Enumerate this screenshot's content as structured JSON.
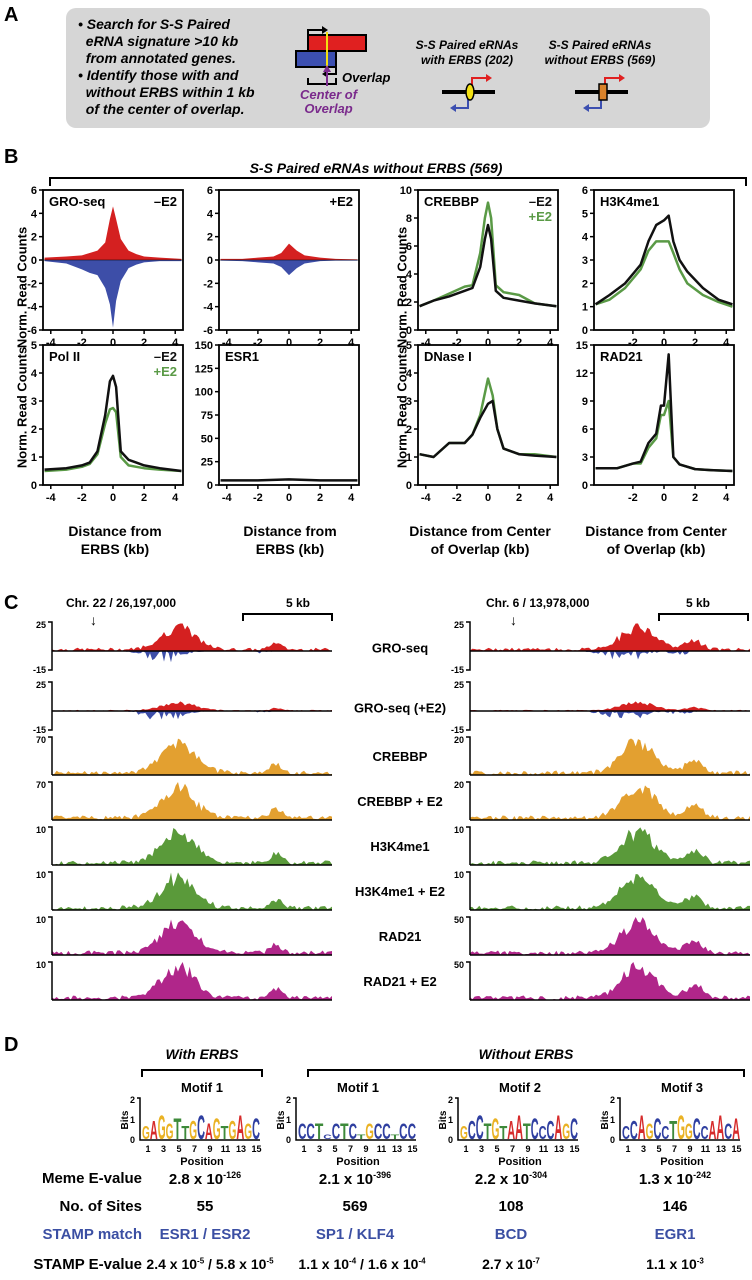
{
  "panelA": {
    "letter": "A",
    "bullets": [
      [
        "Search for S-S Paired",
        "eRNA signature >10 kb",
        "from annotated genes."
      ],
      [
        "Identify those with and",
        "without ERBS within 1 kb",
        "of the center of overlap."
      ]
    ],
    "overlap_label": "Overlap",
    "center_label": [
      "Center of",
      "Overlap"
    ],
    "with_title": [
      "S-S Paired eRNAs",
      "with ERBS (202)"
    ],
    "without_title": [
      "S-S Paired eRNAs",
      "without ERBS (569)"
    ],
    "colors": {
      "sense": "#e02020",
      "antisense": "#3c4fb0",
      "center": "#7a2a8c",
      "erbs": "#f2e011",
      "no_erbs": "#d9822b",
      "box": "#d6d6d6"
    }
  },
  "panelB": {
    "letter": "B",
    "bracket_title": "S-S Paired eRNAs without ERBS (569)",
    "ylabel": "Norm. Read Counts",
    "xlabel_erbs": [
      "Distance from",
      "ERBS (kb)"
    ],
    "xlabel_center": [
      "Distance from Center",
      "of Overlap (kb)"
    ],
    "legend": {
      "minus": "–E2",
      "plus": "+E2"
    },
    "colors": {
      "minus": "#111111",
      "plus": "#5a9a46",
      "sense": "#d42020",
      "antisense": "#3d4ea8"
    }
  },
  "chart_data": [
    {
      "id": "gro-minus",
      "type": "area",
      "title": "GRO-seq",
      "tag": "–E2",
      "xlim": [
        -4.5,
        4.5
      ],
      "ylim": [
        -6,
        6
      ],
      "xticks": [
        -4,
        -2,
        0,
        2,
        4
      ],
      "yticks": [
        -6,
        -4,
        -2,
        0,
        2,
        4,
        6
      ],
      "series": [
        {
          "name": "sense",
          "x": [
            -4.4,
            -3,
            -2,
            -1.5,
            -1,
            -0.5,
            -0.2,
            0,
            0.2,
            0.5,
            1,
            1.5,
            2,
            3,
            4.4
          ],
          "values": [
            0.2,
            0.3,
            0.4,
            0.6,
            0.8,
            1.5,
            3.5,
            4.6,
            3.5,
            1.8,
            0.8,
            0.5,
            0.3,
            0.2,
            0.1
          ]
        },
        {
          "name": "antisense",
          "x": [
            -4.4,
            -3,
            -2,
            -1.5,
            -1,
            -0.5,
            -0.2,
            0,
            0.2,
            0.5,
            1,
            1.5,
            2,
            3,
            4.4
          ],
          "values": [
            -0.1,
            -0.3,
            -0.8,
            -1.1,
            -1.3,
            -2.4,
            -3.8,
            -5.8,
            -3.5,
            -1.8,
            -0.7,
            -0.4,
            -0.2,
            -0.1,
            -0.1
          ]
        }
      ]
    },
    {
      "id": "gro-plus",
      "type": "area",
      "title": "",
      "tag": "+E2",
      "xlim": [
        -4.5,
        4.5
      ],
      "ylim": [
        -6,
        6
      ],
      "xticks": [
        -4,
        -2,
        0,
        2,
        4
      ],
      "yticks": [
        -6,
        -4,
        -2,
        0,
        2,
        4,
        6
      ],
      "series": [
        {
          "name": "sense",
          "x": [
            -4.4,
            -3,
            -2,
            -1,
            -0.5,
            0,
            0.5,
            1,
            2,
            3,
            4.4
          ],
          "values": [
            0.1,
            0.1,
            0.2,
            0.3,
            0.6,
            1.4,
            0.8,
            0.4,
            0.2,
            0.1,
            0.05
          ]
        },
        {
          "name": "antisense",
          "x": [
            -4.4,
            -3,
            -2,
            -1,
            -0.5,
            0,
            0.5,
            1,
            2,
            3,
            4.4
          ],
          "values": [
            -0.05,
            -0.1,
            -0.2,
            -0.3,
            -0.6,
            -1.3,
            -0.7,
            -0.3,
            -0.1,
            -0.05,
            -0.05
          ]
        }
      ]
    },
    {
      "id": "crebbp",
      "type": "line",
      "title": "CREBBP",
      "xlim": [
        -4.5,
        4.5
      ],
      "ylim": [
        0,
        10
      ],
      "xticks": [
        -4,
        -2,
        0,
        2,
        4
      ],
      "yticks": [
        0,
        2,
        4,
        6,
        8,
        10
      ],
      "series": [
        {
          "name": "–E2",
          "x": [
            -4.4,
            -3.5,
            -2.5,
            -1.5,
            -1,
            -0.5,
            -0.2,
            0,
            0.2,
            0.5,
            1,
            2,
            3,
            4.4
          ],
          "values": [
            1.7,
            2.1,
            2.4,
            2.8,
            3.0,
            4.5,
            6.5,
            7.5,
            6.5,
            2.8,
            2.3,
            2.1,
            1.9,
            1.7
          ]
        },
        {
          "name": "+E2",
          "x": [
            -4.4,
            -3.5,
            -2.5,
            -1.5,
            -1,
            -0.5,
            -0.2,
            0,
            0.2,
            0.5,
            1,
            2,
            3,
            4.4
          ],
          "values": [
            1.7,
            2.1,
            2.6,
            3.1,
            3.2,
            5.5,
            8.0,
            9.1,
            8.0,
            3.2,
            2.7,
            2.5,
            1.9,
            1.7
          ]
        }
      ]
    },
    {
      "id": "h3k4me1",
      "type": "line",
      "title": "H3K4me1",
      "xlim": [
        -4.5,
        4.5
      ],
      "ylim": [
        0,
        6
      ],
      "xticks": [
        -2,
        0,
        2,
        4
      ],
      "yticks": [
        0,
        1,
        2,
        3,
        4,
        5,
        6
      ],
      "series": [
        {
          "name": "–E2",
          "x": [
            -4.4,
            -3.5,
            -2.5,
            -1.5,
            -1,
            -0.5,
            0,
            0.3,
            0.6,
            1,
            1.5,
            2.5,
            3.5,
            4.4
          ],
          "values": [
            1.1,
            1.5,
            2.0,
            2.8,
            3.8,
            4.5,
            4.7,
            4.9,
            3.8,
            3.0,
            2.5,
            1.8,
            1.3,
            1.1
          ]
        },
        {
          "name": "+E2",
          "x": [
            -4.4,
            -3.5,
            -2.5,
            -1.5,
            -1,
            -0.5,
            0,
            0.3,
            0.6,
            1,
            1.5,
            2.5,
            3.5,
            4.4
          ],
          "values": [
            1.1,
            1.3,
            1.8,
            2.6,
            3.4,
            3.8,
            3.8,
            3.8,
            3.3,
            2.6,
            2.0,
            1.5,
            1.2,
            1.0
          ]
        }
      ]
    },
    {
      "id": "pol2",
      "type": "line",
      "title": "Pol II",
      "xlim": [
        -4.5,
        4.5
      ],
      "ylim": [
        0,
        5
      ],
      "xticks": [
        -4,
        -2,
        0,
        2,
        4
      ],
      "yticks": [
        0,
        1,
        2,
        3,
        4,
        5
      ],
      "series": [
        {
          "name": "–E2",
          "x": [
            -4.4,
            -3,
            -2,
            -1.5,
            -1,
            -0.5,
            -0.2,
            0,
            0.2,
            0.5,
            1,
            1.5,
            2,
            3,
            4.4
          ],
          "values": [
            0.55,
            0.6,
            0.7,
            0.8,
            1.2,
            2.5,
            3.7,
            3.9,
            3.5,
            1.2,
            0.9,
            0.8,
            0.7,
            0.6,
            0.5
          ]
        },
        {
          "name": "+E2",
          "x": [
            -4.4,
            -3,
            -2,
            -1.5,
            -1,
            -0.5,
            -0.2,
            0,
            0.2,
            0.5,
            1,
            1.5,
            2,
            3,
            4.4
          ],
          "values": [
            0.5,
            0.55,
            0.65,
            0.75,
            1.1,
            2.2,
            2.7,
            2.75,
            2.6,
            1.0,
            0.7,
            0.65,
            0.6,
            0.55,
            0.5
          ]
        }
      ]
    },
    {
      "id": "esr1",
      "type": "line",
      "title": "ESR1",
      "xlim": [
        -4.5,
        4.5
      ],
      "ylim": [
        0,
        150
      ],
      "xticks": [
        -4,
        -2,
        0,
        2,
        4
      ],
      "yticks": [
        0,
        25,
        50,
        75,
        100,
        125,
        150
      ],
      "series": [
        {
          "name": "–E2",
          "x": [
            -4.4,
            -2,
            0,
            2,
            4.4
          ],
          "values": [
            5,
            5,
            6,
            5,
            5
          ]
        }
      ]
    },
    {
      "id": "dnase",
      "type": "line",
      "title": "DNase I",
      "xlim": [
        -4.5,
        4.5
      ],
      "ylim": [
        0,
        5
      ],
      "xticks": [
        -4,
        -2,
        0,
        2,
        4
      ],
      "yticks": [
        0,
        1,
        2,
        3,
        4,
        5
      ],
      "series": [
        {
          "name": "–E2",
          "x": [
            -4.4,
            -3.5,
            -2.5,
            -1.5,
            -1,
            -0.5,
            0,
            0.3,
            0.6,
            1,
            2,
            3,
            4.4
          ],
          "values": [
            1.1,
            1.0,
            1.5,
            1.5,
            1.8,
            2.4,
            2.9,
            3.0,
            2.0,
            1.3,
            1.1,
            1.05,
            1.0
          ]
        },
        {
          "name": "+E2",
          "x": [
            -4.4,
            -3.5,
            -2.5,
            -1.5,
            -1,
            -0.5,
            0,
            0.3,
            0.6,
            1,
            2,
            3,
            4.4
          ],
          "values": [
            1.1,
            1.0,
            1.5,
            1.5,
            1.8,
            2.5,
            3.8,
            3.2,
            2.0,
            1.3,
            1.1,
            1.1,
            1.0
          ]
        }
      ]
    },
    {
      "id": "rad21",
      "type": "line",
      "title": "RAD21",
      "xlim": [
        -4.5,
        4.5
      ],
      "ylim": [
        0,
        15
      ],
      "xticks": [
        -2,
        0,
        2,
        4
      ],
      "yticks": [
        0,
        3,
        6,
        9,
        12,
        15
      ],
      "series": [
        {
          "name": "–E2",
          "x": [
            -4.4,
            -3,
            -2,
            -1.5,
            -1,
            -0.5,
            -0.2,
            0,
            0.3,
            0.6,
            1,
            2,
            3,
            4.4
          ],
          "values": [
            1.8,
            1.8,
            2.3,
            2.5,
            4.5,
            5.5,
            8.5,
            8.5,
            14,
            3,
            2.2,
            1.7,
            1.6,
            1.5
          ]
        },
        {
          "name": "+E2",
          "x": [
            -4.4,
            -3,
            -2,
            -1.5,
            -1,
            -0.5,
            -0.2,
            0,
            0.3,
            0.6,
            1,
            2,
            3,
            4.4
          ],
          "values": [
            1.8,
            1.8,
            2.3,
            2.3,
            4,
            5,
            7.5,
            7.5,
            9,
            3,
            2.2,
            1.7,
            1.6,
            1.5
          ]
        }
      ]
    }
  ],
  "panelC": {
    "letter": "C",
    "left": {
      "locus": "Chr. 22 / 26,197,000",
      "scale": "5 kb"
    },
    "right": {
      "locus": "Chr. 6 / 13,978,000",
      "scale": "5 kb"
    },
    "tracks": [
      {
        "label": "GRO-seq",
        "left_max": "25",
        "left_min": "-15",
        "right_max": "25",
        "right_min": "-15",
        "color": "#d42020",
        "neg_color": "#3d4ea8"
      },
      {
        "label": "GRO-seq (+E2)",
        "left_max": "25",
        "left_min": "-15",
        "right_max": "25",
        "right_min": "-15",
        "color": "#d42020",
        "neg_color": "#3d4ea8"
      },
      {
        "label": "CREBBP",
        "left_max": "70",
        "right_max": "20",
        "color": "#e3a030"
      },
      {
        "label": "CREBBP + E2",
        "left_max": "70",
        "right_max": "20",
        "color": "#e3a030"
      },
      {
        "label": "H3K4me1",
        "left_max": "10",
        "right_max": "10",
        "color": "#5a9a3a"
      },
      {
        "label": "H3K4me1 + E2",
        "left_max": "10",
        "right_max": "10",
        "color": "#5a9a3a"
      },
      {
        "label": "RAD21",
        "left_max": "10",
        "right_max": "50",
        "color": "#b0268a"
      },
      {
        "label": "RAD21 + E2",
        "left_max": "10",
        "right_max": "50",
        "color": "#b0268a"
      }
    ]
  },
  "panelD": {
    "letter": "D",
    "with_header": "With ERBS",
    "without_header": "Without ERBS",
    "ylabel": "Bits",
    "xlabel": "Position",
    "position_ticks": [
      "1",
      "3",
      "5",
      "7",
      "9",
      "11",
      "13",
      "15"
    ],
    "motifs": [
      {
        "title": "Motif 1",
        "sequence": "GAGGTTGCAGTGAGC",
        "meme_mant": "2.8 x 10",
        "meme_exp": "-126",
        "sites": "55",
        "stamp": "ESR1 / ESR2",
        "stamp_e": [
          [
            "2.4 x 10",
            "-5"
          ],
          [
            "5.8 x 10",
            "-5"
          ]
        ]
      },
      {
        "title": "Motif 1",
        "sequence": "CCTCCTCTGCCTCC",
        "meme_mant": "2.1 x 10",
        "meme_exp": "-396",
        "sites": "569",
        "stamp": "SP1 / KLF4",
        "stamp_e": [
          [
            "1.1 x 10",
            "-4"
          ],
          [
            "1.6 x 10",
            "-4"
          ]
        ]
      },
      {
        "title": "Motif 2",
        "sequence": "GCCTGTAATCCCAGC",
        "meme_mant": "2.2 x 10",
        "meme_exp": "-304",
        "sites": "108",
        "stamp": "BCD",
        "stamp_e": [
          [
            "2.7 x 10",
            "-7"
          ]
        ]
      },
      {
        "title": "Motif 3",
        "sequence": "CCAGCCTGGCCAACA",
        "meme_mant": "1.3 x 10",
        "meme_exp": "-242",
        "sites": "146",
        "stamp": "EGR1",
        "stamp_e": [
          [
            "1.1 x 10",
            "-3"
          ]
        ]
      }
    ],
    "row_labels": {
      "meme": "Meme E-value",
      "sites": "No. of Sites",
      "stamp": "STAMP match",
      "stamp_e": "STAMP E-value"
    },
    "base_colors": {
      "A": "#d62b2b",
      "C": "#2f3fa0",
      "G": "#eab224",
      "T": "#3d8a3a"
    }
  }
}
